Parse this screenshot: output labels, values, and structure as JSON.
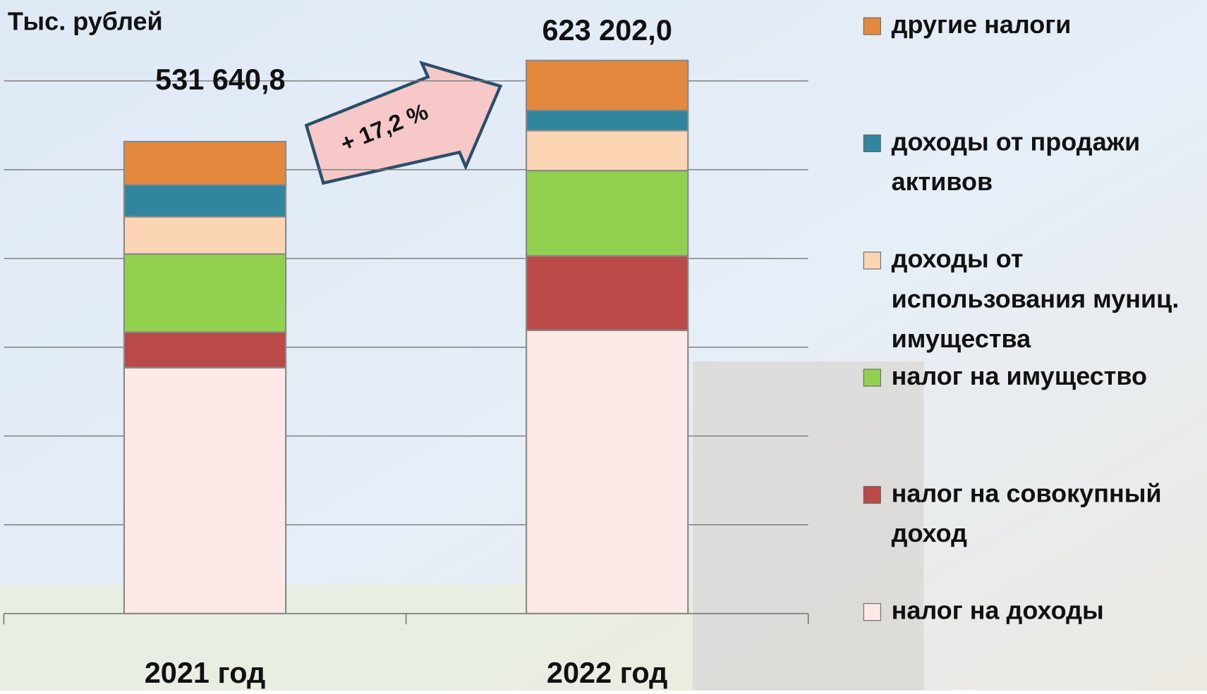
{
  "chart_data": {
    "type": "stacked-bar",
    "y_label": "Тыс. рублей",
    "categories": [
      "2021 год",
      "2022 год"
    ],
    "series": [
      {
        "name": "налог на доходы",
        "color": "#fde9e7",
        "values": [
          277000,
          319000
        ]
      },
      {
        "name": "налог на совокупный доход",
        "color": "#b94a48",
        "values": [
          40000,
          84000
        ]
      },
      {
        "name": "налог на имущество",
        "color": "#92d050",
        "values": [
          88000,
          96000
        ]
      },
      {
        "name": "доходы от использования муниц. имущества",
        "color": "#fcd5b5",
        "values": [
          42000,
          45000
        ]
      },
      {
        "name": "доходы от продажи активов",
        "color": "#31859c",
        "values": [
          36000,
          23000
        ]
      },
      {
        "name": "другие налоги",
        "color": "#e3883c",
        "values": [
          48600,
          56000
        ]
      }
    ],
    "totals": [
      531640.8,
      623202.0
    ],
    "total_labels": [
      "531 640,8",
      "623 202,0"
    ],
    "annotation": "+ 17,2 %",
    "ylim": [
      0,
      650000
    ],
    "yticks": [
      0,
      100000,
      200000,
      300000,
      400000,
      500000,
      600000
    ],
    "grid": true,
    "legend_position": "right"
  }
}
